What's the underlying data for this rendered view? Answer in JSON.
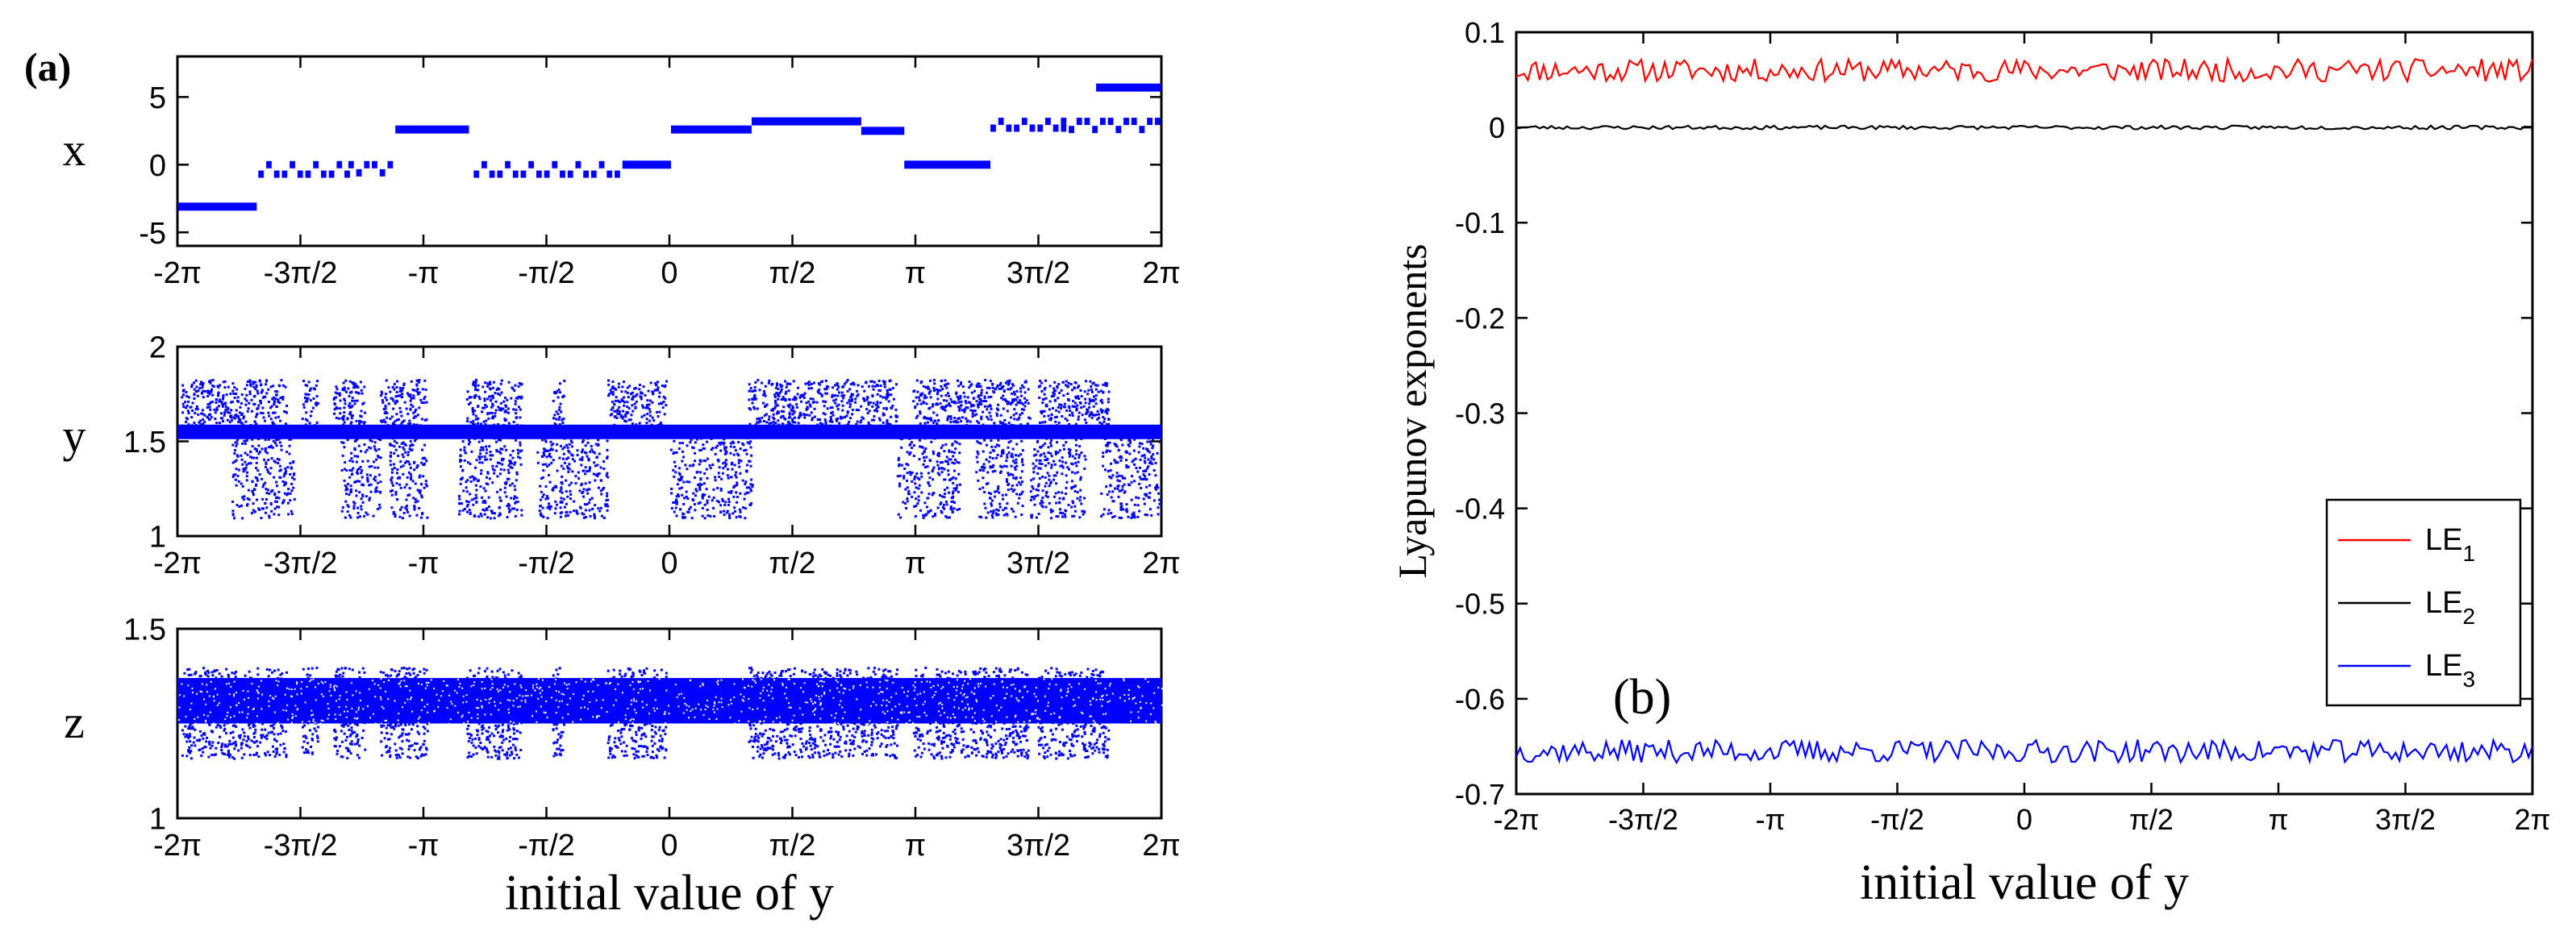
{
  "figure": {
    "panel_a_label": "(a)",
    "panel_b_label": "(b)",
    "colors": {
      "blue": "#0000ff",
      "red": "#ff0000",
      "black": "#000000",
      "axis": "#000000"
    }
  },
  "chart_data": [
    {
      "id": "a-x",
      "type": "scatter",
      "panel": "(a)",
      "ylabel": "x",
      "xlabel": "",
      "xlim": [
        -6.2832,
        6.2832
      ],
      "ylim": [
        -6,
        8
      ],
      "yticks": [
        -5,
        0,
        5
      ],
      "yticklabels": [
        "-5",
        "0",
        "5"
      ],
      "xticklabels": [
        "-2π",
        "-3π/2",
        "-π",
        "-π/2",
        "0",
        "π/2",
        "π",
        "3π/2",
        "2π"
      ],
      "segments": [
        {
          "x0": -6.28,
          "x1": -5.27,
          "y": -3.1
        },
        {
          "x0": -5.25,
          "x1": -4.1,
          "y": -0.7,
          "alt_y": 0,
          "dashed": true
        },
        {
          "x0": -4.1,
          "x1": -3.55,
          "y": 0,
          "alt_y": -0.6,
          "dashed": true
        },
        {
          "x0": -3.5,
          "x1": -2.56,
          "y": 2.6
        },
        {
          "x0": -2.5,
          "x1": -0.6,
          "y": -0.7,
          "alt_y": 0,
          "dashed": true
        },
        {
          "x0": -0.6,
          "x1": 0.02,
          "y": 0
        },
        {
          "x0": 0.02,
          "x1": 1.05,
          "y": 2.6
        },
        {
          "x0": 1.05,
          "x1": 2.45,
          "y": 3.2
        },
        {
          "x0": 2.45,
          "x1": 3.0,
          "y": 2.5
        },
        {
          "x0": 3.0,
          "x1": 4.1,
          "y": 0
        },
        {
          "x0": 4.1,
          "x1": 5.0,
          "y": 2.7,
          "alt_y": 3.2,
          "dashed": true
        },
        {
          "x0": 5.0,
          "x1": 6.25,
          "y": 3.2,
          "alt_y": 2.6,
          "dashed": true
        },
        {
          "x0": 5.45,
          "x1": 6.28,
          "y": 5.7
        }
      ]
    },
    {
      "id": "a-y",
      "type": "scatter",
      "panel": "(a)",
      "ylabel": "y",
      "xlabel": "",
      "xlim": [
        -6.2832,
        6.2832
      ],
      "ylim": [
        1,
        2
      ],
      "yticks": [
        1,
        1.5,
        2
      ],
      "yticklabels": [
        "1",
        "1.5",
        "2"
      ],
      "xticklabels": [
        "-2π",
        "-3π/2",
        "-π",
        "-π/2",
        "0",
        "π/2",
        "π",
        "3π/2",
        "2π"
      ],
      "baseline_y": 1.55,
      "upper_band": [
        1.55,
        1.83
      ],
      "lower_band": [
        1.1,
        1.55
      ],
      "upper_intervals": [
        [
          -6.25,
          -4.9
        ],
        [
          -4.7,
          -4.5
        ],
        [
          -4.3,
          -3.9
        ],
        [
          -3.7,
          -3.1
        ],
        [
          -2.6,
          -1.9
        ],
        [
          -1.5,
          -1.35
        ],
        [
          -0.8,
          -0.05
        ],
        [
          1.0,
          2.9
        ],
        [
          3.1,
          4.6
        ],
        [
          4.7,
          5.6
        ]
      ],
      "lower_intervals": [
        [
          -5.6,
          -4.8
        ],
        [
          -4.2,
          -3.7
        ],
        [
          -3.6,
          -3.1
        ],
        [
          -2.7,
          -1.9
        ],
        [
          -1.7,
          -0.8
        ],
        [
          0.0,
          1.05
        ],
        [
          2.9,
          3.7
        ],
        [
          3.9,
          4.5
        ],
        [
          4.6,
          5.3
        ],
        [
          5.5,
          6.25
        ]
      ]
    },
    {
      "id": "a-z",
      "type": "scatter",
      "panel": "(a)",
      "ylabel": "z",
      "xlabel": "initial value of y",
      "xlim": [
        -6.2832,
        6.2832
      ],
      "ylim": [
        1,
        1.5
      ],
      "yticks": [
        1,
        1.5
      ],
      "yticklabels": [
        "1",
        "1.5"
      ],
      "xticklabels": [
        "-2π",
        "-3π/2",
        "-π",
        "-π/2",
        "0",
        "π/2",
        "π",
        "3π/2",
        "2π"
      ],
      "center_band": [
        1.25,
        1.37
      ],
      "outer_band": [
        1.16,
        1.4
      ],
      "outer_intervals": [
        [
          -6.25,
          -4.9
        ],
        [
          -4.7,
          -4.5
        ],
        [
          -4.3,
          -3.9
        ],
        [
          -3.7,
          -3.1
        ],
        [
          -2.6,
          -1.9
        ],
        [
          -1.5,
          -1.35
        ],
        [
          -0.8,
          -0.05
        ],
        [
          1.0,
          2.9
        ],
        [
          3.1,
          4.6
        ],
        [
          4.7,
          5.6
        ]
      ]
    },
    {
      "id": "b-le",
      "type": "line",
      "panel": "(b)",
      "ylabel": "Lyapunov exponents",
      "xlabel": "initial value of y",
      "xlim": [
        -6.2832,
        6.2832
      ],
      "ylim": [
        -0.7,
        0.1
      ],
      "yticks": [
        0.1,
        0,
        -0.1,
        -0.2,
        -0.3,
        -0.4,
        -0.5,
        -0.6,
        -0.7
      ],
      "yticklabels": [
        "0.1",
        "0",
        "-0.1",
        "-0.2",
        "-0.3",
        "-0.4",
        "-0.5",
        "-0.6",
        "-0.7"
      ],
      "xticklabels": [
        "-2π",
        "-3π/2",
        "-π",
        "-π/2",
        "0",
        "π/2",
        "π",
        "3π/2",
        "2π"
      ],
      "legend_position": "lower-right",
      "series": [
        {
          "name": "LE",
          "subscript": "1",
          "color": "#ff0000",
          "mean": 0.06,
          "amplitude": 0.012,
          "seed": 11
        },
        {
          "name": "LE",
          "subscript": "2",
          "color": "#000000",
          "mean": 0.0,
          "amplitude": 0.002,
          "seed": 23
        },
        {
          "name": "LE",
          "subscript": "3",
          "color": "#0000ff",
          "mean": -0.655,
          "amplitude": 0.012,
          "seed": 37
        }
      ]
    }
  ]
}
